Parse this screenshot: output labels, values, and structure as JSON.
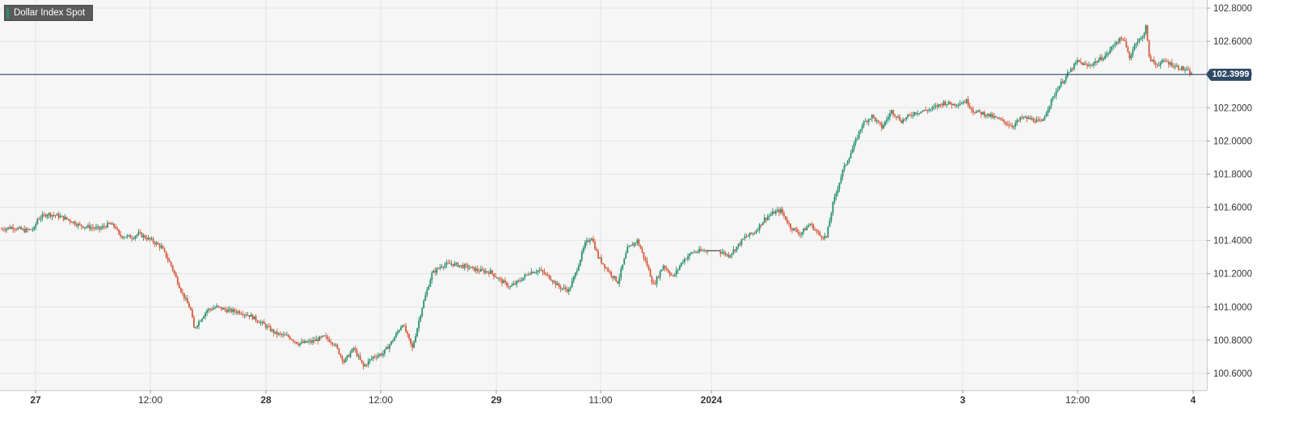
{
  "legend": {
    "label": "Dollar Index Spot"
  },
  "last_price_label": "102.3999",
  "colors": {
    "up": "#26906e",
    "down": "#d65a3c",
    "grid": "#e4e4ea",
    "background": "#f6f6f6",
    "price_line": "#2f4a66"
  },
  "chart_data": {
    "type": "candlestick",
    "title": "",
    "series_name": "Dollar Index Spot",
    "ylim": [
      100.5,
      102.82
    ],
    "y_ticks": [
      "102.8000",
      "102.6000",
      "102.4000",
      "102.2000",
      "102.0000",
      "101.8000",
      "101.6000",
      "101.4000",
      "101.2000",
      "101.0000",
      "100.8000",
      "100.6000"
    ],
    "x_ticks": [
      {
        "label": "27",
        "bold": true
      },
      {
        "label": "12:00",
        "bold": false
      },
      {
        "label": "28",
        "bold": true
      },
      {
        "label": "12:00",
        "bold": false
      },
      {
        "label": "29",
        "bold": true
      },
      {
        "label": "11:00",
        "bold": false
      },
      {
        "label": "2024",
        "bold": true
      },
      {
        "label": "3",
        "bold": true
      },
      {
        "label": "12:00",
        "bold": false
      },
      {
        "label": "4",
        "bold": true
      }
    ],
    "last_price": 102.3999,
    "grid": true,
    "legend_position": "top-left",
    "price_path": [
      [
        0,
        101.47
      ],
      [
        7,
        101.48
      ],
      [
        14,
        101.46
      ],
      [
        20,
        101.47
      ],
      [
        22,
        101.53
      ],
      [
        28,
        101.56
      ],
      [
        34,
        101.55
      ],
      [
        40,
        101.53
      ],
      [
        48,
        101.49
      ],
      [
        60,
        101.47
      ],
      [
        66,
        101.5
      ],
      [
        70,
        101.48
      ],
      [
        72,
        101.43
      ],
      [
        80,
        101.42
      ],
      [
        84,
        101.44
      ],
      [
        92,
        101.4
      ],
      [
        98,
        101.36
      ],
      [
        104,
        101.25
      ],
      [
        110,
        101.1
      ],
      [
        116,
        100.98
      ],
      [
        118,
        100.87
      ],
      [
        126,
        100.98
      ],
      [
        132,
        101.0
      ],
      [
        138,
        100.98
      ],
      [
        146,
        100.97
      ],
      [
        152,
        100.95
      ],
      [
        160,
        100.9
      ],
      [
        168,
        100.84
      ],
      [
        176,
        100.82
      ],
      [
        182,
        100.78
      ],
      [
        190,
        100.79
      ],
      [
        198,
        100.82
      ],
      [
        204,
        100.78
      ],
      [
        210,
        100.67
      ],
      [
        216,
        100.75
      ],
      [
        222,
        100.64
      ],
      [
        228,
        100.7
      ],
      [
        234,
        100.72
      ],
      [
        240,
        100.8
      ],
      [
        246,
        100.9
      ],
      [
        252,
        100.75
      ],
      [
        258,
        101.0
      ],
      [
        264,
        101.2
      ],
      [
        270,
        101.25
      ],
      [
        276,
        101.26
      ],
      [
        286,
        101.24
      ],
      [
        292,
        101.22
      ],
      [
        300,
        101.21
      ],
      [
        306,
        101.16
      ],
      [
        312,
        101.12
      ],
      [
        318,
        101.16
      ],
      [
        324,
        101.21
      ],
      [
        330,
        101.22
      ],
      [
        336,
        101.18
      ],
      [
        342,
        101.12
      ],
      [
        348,
        101.1
      ],
      [
        352,
        101.2
      ],
      [
        358,
        101.38
      ],
      [
        362,
        101.42
      ],
      [
        366,
        101.3
      ],
      [
        372,
        101.22
      ],
      [
        378,
        101.15
      ],
      [
        384,
        101.35
      ],
      [
        390,
        101.4
      ],
      [
        396,
        101.25
      ],
      [
        400,
        101.13
      ],
      [
        406,
        101.25
      ],
      [
        412,
        101.18
      ],
      [
        418,
        101.28
      ],
      [
        424,
        101.33
      ],
      [
        432,
        101.34
      ],
      [
        438,
        101.33
      ],
      [
        442,
        101.33
      ],
      [
        446,
        101.31
      ],
      [
        450,
        101.35
      ],
      [
        456,
        101.42
      ],
      [
        462,
        101.45
      ],
      [
        468,
        101.53
      ],
      [
        474,
        101.57
      ],
      [
        478,
        101.58
      ],
      [
        484,
        101.48
      ],
      [
        490,
        101.44
      ],
      [
        496,
        101.5
      ],
      [
        502,
        101.43
      ],
      [
        506,
        101.42
      ],
      [
        510,
        101.62
      ],
      [
        516,
        101.82
      ],
      [
        522,
        101.95
      ],
      [
        528,
        102.1
      ],
      [
        534,
        102.15
      ],
      [
        540,
        102.08
      ],
      [
        546,
        102.18
      ],
      [
        552,
        102.12
      ],
      [
        560,
        102.17
      ],
      [
        570,
        102.19
      ],
      [
        578,
        102.23
      ],
      [
        584,
        102.22
      ],
      [
        592,
        102.24
      ],
      [
        596,
        102.18
      ],
      [
        604,
        102.16
      ],
      [
        614,
        102.12
      ],
      [
        620,
        102.09
      ],
      [
        626,
        102.14
      ],
      [
        632,
        102.13
      ],
      [
        638,
        102.11
      ],
      [
        642,
        102.2
      ],
      [
        648,
        102.32
      ],
      [
        654,
        102.4
      ],
      [
        660,
        102.48
      ],
      [
        666,
        102.45
      ],
      [
        672,
        102.48
      ],
      [
        678,
        102.52
      ],
      [
        684,
        102.6
      ],
      [
        688,
        102.62
      ],
      [
        692,
        102.5
      ],
      [
        696,
        102.6
      ],
      [
        700,
        102.62
      ],
      [
        702,
        102.7
      ],
      [
        704,
        102.5
      ],
      [
        708,
        102.46
      ],
      [
        714,
        102.48
      ],
      [
        720,
        102.45
      ],
      [
        726,
        102.43
      ],
      [
        730,
        102.4
      ]
    ]
  }
}
